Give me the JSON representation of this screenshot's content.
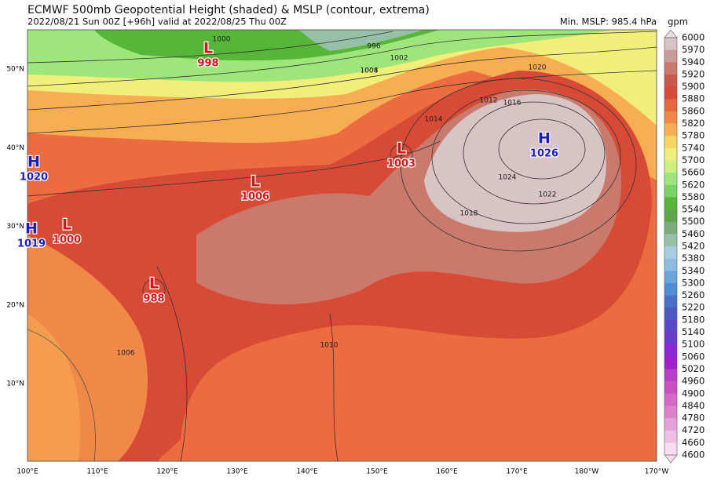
{
  "header": {
    "title": "ECMWF 500mb Geopotential Height (shaded) & MSLP (contour, extrema)",
    "subtitle": "2022/08/21 Sun 00Z [+96h] valid at 2022/08/25 Thu 00Z",
    "min_mslp": "Min. MSLP: 985.4 hPa"
  },
  "colorbar": {
    "unit": "gpm",
    "labels": [
      6000,
      5970,
      5940,
      5920,
      5900,
      5880,
      5860,
      5820,
      5780,
      5740,
      5700,
      5660,
      5620,
      5580,
      5540,
      5500,
      5460,
      5420,
      5380,
      5340,
      5300,
      5260,
      5220,
      5180,
      5140,
      5100,
      5060,
      5020,
      4960,
      4900,
      4840,
      4780,
      4720,
      4660,
      4600
    ],
    "colors": [
      "#e6dede",
      "#d8c4c4",
      "#c99c96",
      "#c97a6c",
      "#c95a48",
      "#d74a36",
      "#e8663e",
      "#f08848",
      "#f7ae52",
      "#f8d460",
      "#f2ee7a",
      "#cdf07e",
      "#9ee67a",
      "#7ad464",
      "#56b63a",
      "#5ea84a",
      "#7aac7a",
      "#98c0a8",
      "#a8cce0",
      "#8cbce0",
      "#6aa6dc",
      "#4f8ed4",
      "#4870c8",
      "#4d58c4",
      "#5a48c8",
      "#6a3ccc",
      "#8a28d8",
      "#a020d0",
      "#b840c8",
      "#c850c0",
      "#d868c8",
      "#e080cc",
      "#e8a0d8",
      "#f0c0e4",
      "#f8dcf0"
    ]
  },
  "lat_labels": [
    "50°N",
    "40°N",
    "30°N",
    "20°N",
    "10°N"
  ],
  "lon_labels": [
    "100°E",
    "110°E",
    "120°E",
    "130°E",
    "140°E",
    "150°E",
    "160°E",
    "170°E",
    "180°W",
    "170°W"
  ],
  "centers": [
    {
      "letter": "L",
      "value": "998"
    },
    {
      "letter": "H",
      "value": "1020"
    },
    {
      "letter": "L",
      "value": "1006"
    },
    {
      "letter": "L",
      "value": "1003"
    },
    {
      "letter": "H",
      "value": "1026"
    },
    {
      "letter": "H",
      "value": "1019"
    },
    {
      "letter": "L",
      "value": "1000"
    },
    {
      "letter": "L",
      "value": "988"
    }
  ],
  "contour_labels": [
    "1000",
    "1004",
    "1008",
    "1012",
    "1016",
    "1020",
    "1024",
    "1022",
    "1018",
    "1014",
    "1010",
    "1006",
    "996",
    "1002"
  ]
}
